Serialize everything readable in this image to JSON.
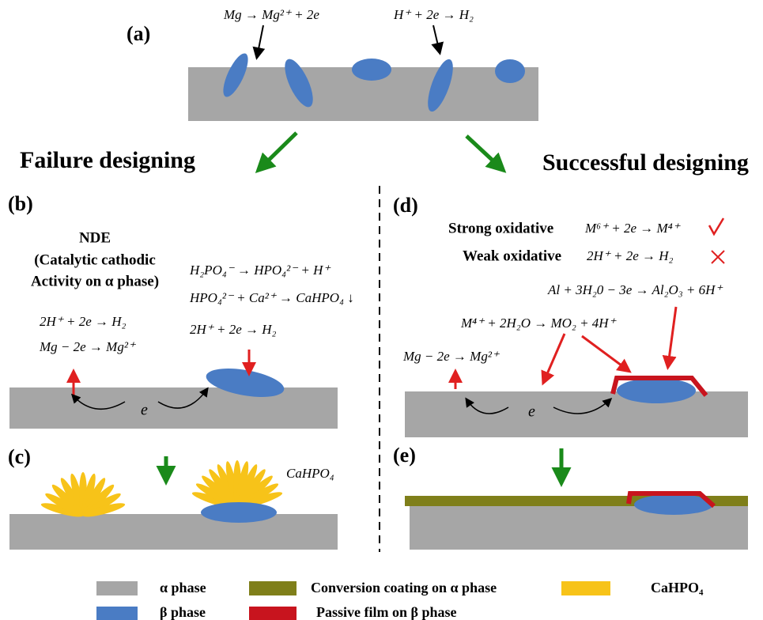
{
  "panel_a": {
    "label": "(a)",
    "equations": [
      "Mg → Mg²⁺ + 2e",
      "H⁺ + 2e → H₂"
    ]
  },
  "headings": {
    "failure": "Failure designing",
    "success": "Successful designing"
  },
  "panel_b": {
    "label": "(b)",
    "nde": [
      "NDE",
      "(Catalytic cathodic",
      "Activity on α phase)"
    ],
    "left_equations": [
      "2H⁺ + 2e → H₂",
      "Mg − 2e → Mg²⁺"
    ],
    "right_equations": [
      "H₂PO₄⁻ → HPO₄²⁻ + H⁺",
      "HPO₄²⁻ + Ca²⁺ → CaHPO₄ ↓",
      "2H⁺ + 2e → H₂"
    ],
    "electron": "e"
  },
  "panel_c": {
    "label": "(c)",
    "product": "CaHPO₄"
  },
  "panel_d": {
    "label": "(d)",
    "strong": "Strong oxidative",
    "strong_equation": "M⁶⁺ + 2e → M⁴⁺",
    "weak": "Weak oxidative",
    "weak_equation": "2H⁺ + 2e → H₂",
    "al_equation": "Al + 3H₂0 − 3e → Al₂O₃ + 6H⁺",
    "m_equation": "M⁴⁺ + 2H₂O → MO₂ + 4H⁺",
    "mg_equation": "Mg − 2e → Mg²⁺",
    "electron": "e"
  },
  "panel_e": {
    "label": "(e)"
  },
  "legend": [
    "α phase",
    "β phase",
    "Conversion  coating on α phase",
    "Passive film on β phase",
    "CaHPO₄"
  ]
}
